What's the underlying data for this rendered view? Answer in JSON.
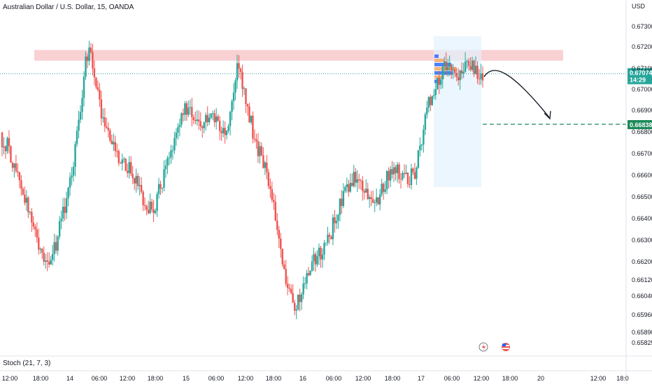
{
  "header": {
    "title": "Australian Dollar / U.S. Dollar, 15, OANDA"
  },
  "price_axis": {
    "currency": "USD",
    "labels": [
      "0.67300",
      "0.67200",
      "0.67100",
      "0.67000",
      "0.66900",
      "0.66800",
      "0.66700",
      "0.66600",
      "0.66500",
      "0.66400",
      "0.66300",
      "0.66200",
      "0.66120",
      "0.66040",
      "0.65960",
      "0.65890",
      "0.65825"
    ],
    "current_price": "0.67074",
    "countdown": "14:29",
    "target_price": "0.66838"
  },
  "time_axis": {
    "labels": [
      "12:00",
      "18:00",
      "14",
      "06:00",
      "12:00",
      "18:00",
      "15",
      "06:00",
      "12:00",
      "18:00",
      "16",
      "06:00",
      "12:00",
      "18:00",
      "17",
      "06:00",
      "12:00",
      "18:00",
      "20",
      "12:00",
      "18:0"
    ]
  },
  "indicator": {
    "label": "Stoch (21, 7, 3)"
  },
  "colors": {
    "up": "#26a69a",
    "down": "#ef5350",
    "resistance_zone": "#f7c5c8",
    "target_line": "#1b8a5a",
    "current_line": "#26a69a",
    "profile_blue": "#2962ff",
    "profile_orange": "#f7a35c"
  },
  "icons": {
    "lightning": "lightning-icon",
    "flag": "us-flag-icon"
  },
  "chart_data": {
    "type": "candlestick",
    "symbol": "AUDUSD",
    "interval": "15",
    "ylim": [
      0.6583,
      0.6737
    ],
    "resistance_zone": [
      0.67135,
      0.67185
    ],
    "projection_target": 0.66838,
    "close_path": [
      0.6677,
      0.6674,
      0.6667,
      0.6661,
      0.6652,
      0.6643,
      0.6635,
      0.6628,
      0.6621,
      0.6618,
      0.6625,
      0.6636,
      0.6645,
      0.6655,
      0.6672,
      0.669,
      0.6712,
      0.6718,
      0.67,
      0.6688,
      0.668,
      0.6674,
      0.667,
      0.6668,
      0.6664,
      0.666,
      0.6655,
      0.665,
      0.6645,
      0.6643,
      0.6652,
      0.6661,
      0.667,
      0.6678,
      0.6686,
      0.6693,
      0.6688,
      0.6682,
      0.6683,
      0.6686,
      0.6688,
      0.6684,
      0.668,
      0.6683,
      0.6693,
      0.671,
      0.6702,
      0.6692,
      0.668,
      0.6672,
      0.6665,
      0.6658,
      0.6645,
      0.663,
      0.6617,
      0.6604,
      0.6597,
      0.6603,
      0.6611,
      0.6618,
      0.6621,
      0.6624,
      0.6626,
      0.6634,
      0.6642,
      0.6649,
      0.6655,
      0.6657,
      0.6659,
      0.6654,
      0.665,
      0.6647,
      0.6649,
      0.6656,
      0.666,
      0.6663,
      0.6661,
      0.6659,
      0.6658,
      0.6662,
      0.6672,
      0.6689,
      0.6696,
      0.6702,
      0.6708,
      0.671,
      0.6709,
      0.6707,
      0.6708,
      0.671,
      0.6711,
      0.6708,
      0.6704
    ]
  }
}
